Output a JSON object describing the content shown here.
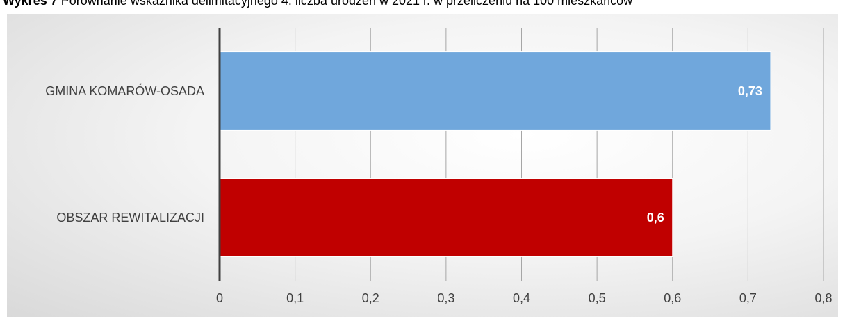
{
  "caption": {
    "lead": "Wykres 7",
    "text": "Porównanie wskaźnika delimitacyjnego 4: liczba urodzeń w 2021 r. w przeliczeniu na  100 mieszkańców"
  },
  "chart_data": {
    "type": "bar",
    "orientation": "horizontal",
    "categories": [
      "GMINA KOMARÓW-OSADA",
      "OBSZAR REWITALIZACJI"
    ],
    "values": [
      0.73,
      0.6
    ],
    "value_labels": [
      "0,73",
      "0,6"
    ],
    "colors": [
      "#70a7dc",
      "#c00000"
    ],
    "xlim": [
      0,
      0.8
    ],
    "xticks": [
      0,
      0.1,
      0.2,
      0.3,
      0.4,
      0.5,
      0.6,
      0.7,
      0.8
    ],
    "xtick_labels": [
      "0",
      "0,1",
      "0,2",
      "0,3",
      "0,4",
      "0,5",
      "0,6",
      "0,7",
      "0,8"
    ],
    "grid": "vertical",
    "legend": "none",
    "xlabel": "",
    "ylabel": ""
  }
}
